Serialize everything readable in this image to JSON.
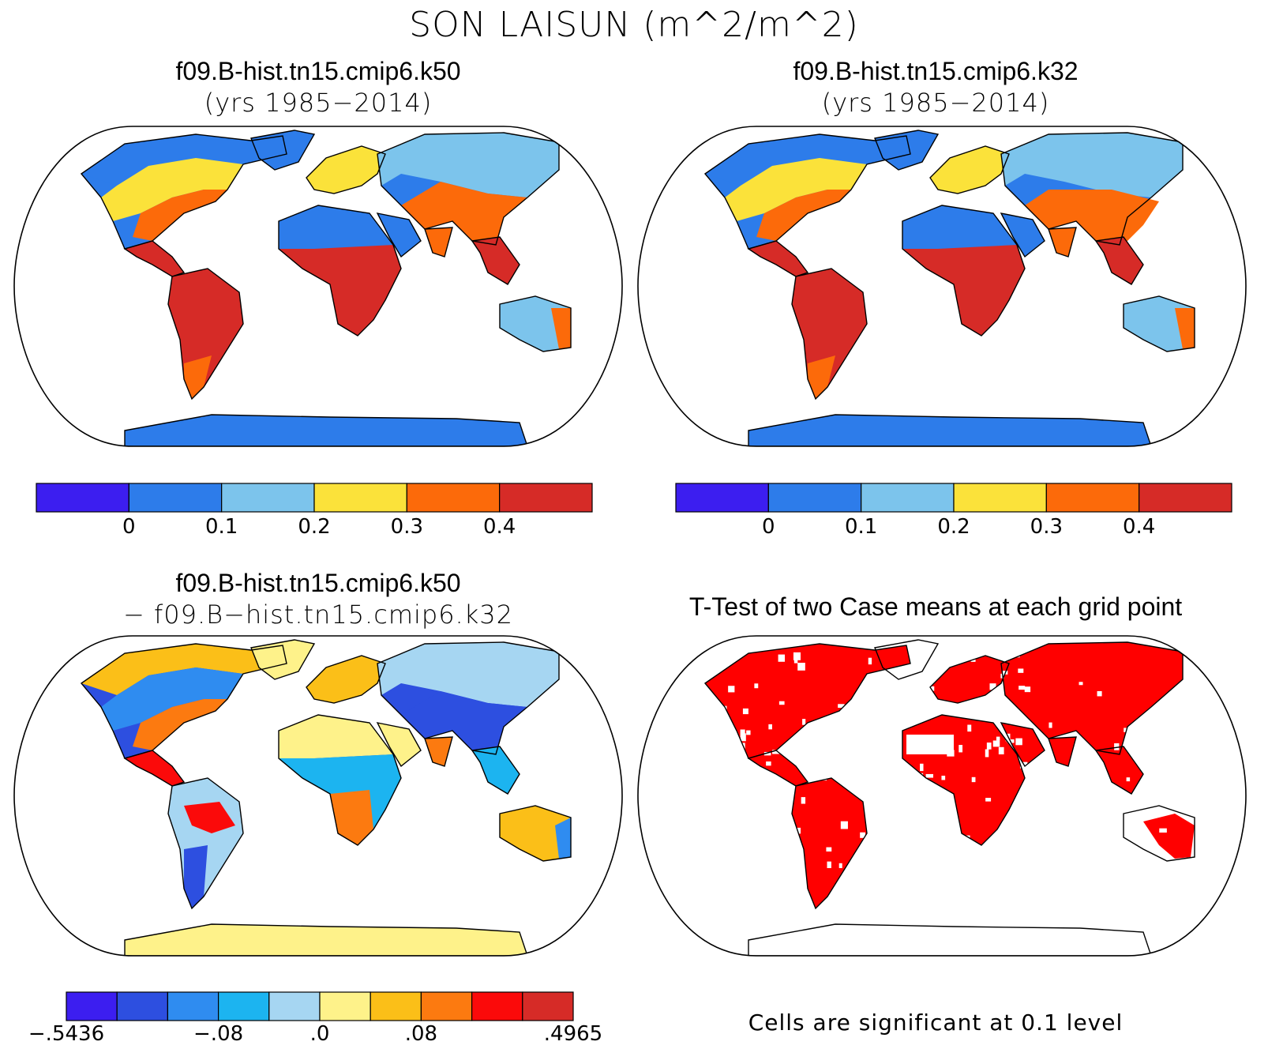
{
  "figure": {
    "title": "SON LAISUN (m^2/m^2)"
  },
  "panels": [
    {
      "id": "case1",
      "title_line1": "f09.B-hist.tn15.cmip6.k50",
      "title_line2": "(yrs 1985−2014)",
      "colorbar": {
        "colors": [
          "#3c1ef0",
          "#2d7cea",
          "#7cc4ec",
          "#fbe23a",
          "#fc6a0a",
          "#d62b27"
        ],
        "labels": [
          "0",
          "0.1",
          "0.2",
          "0.3",
          "0.4"
        ]
      }
    },
    {
      "id": "case2",
      "title_line1": "f09.B-hist.tn15.cmip6.k32",
      "title_line2": "(yrs 1985−2014)",
      "colorbar": {
        "colors": [
          "#3c1ef0",
          "#2d7cea",
          "#7cc4ec",
          "#fbe23a",
          "#fc6a0a",
          "#d62b27"
        ],
        "labels": [
          "0",
          "0.1",
          "0.2",
          "0.3",
          "0.4"
        ]
      }
    },
    {
      "id": "diff",
      "title_line1": "f09.B-hist.tn15.cmip6.k50",
      "title_line2": "− f09.B−hist.tn15.cmip6.k32",
      "colorbar": {
        "colors": [
          "#3c1ef0",
          "#2d4fe0",
          "#2f8cf0",
          "#1cb4f0",
          "#a6d6f2",
          "#fef28a",
          "#fbbf18",
          "#fc7a10",
          "#fb0a0a",
          "#d62b27"
        ],
        "labels": [
          "−.5436",
          "−.08",
          ".0",
          ".08",
          ".4965"
        ]
      }
    },
    {
      "id": "ttest",
      "title_line1": "T-Test of two Case means at each grid point",
      "footnote": "Cells are significant at 0.1 level",
      "significant_color": "#ff0000"
    }
  ]
}
